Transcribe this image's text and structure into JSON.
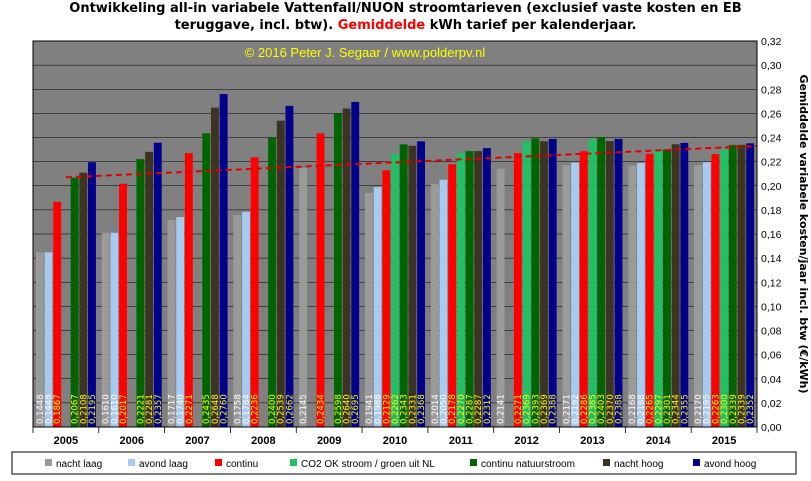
{
  "title": {
    "line1": "Ontwikkeling  all-in variabele Vattenfall/NUON stroomtarieven (exclusief vaste kosten en EB",
    "line2_pre": "teruggave, incl. btw).",
    "line2_highlight": "Gemiddelde",
    "line2_post": " kWh tarief per kalenderjaar."
  },
  "copyright": "© 2016 Peter J. Segaar / www.polderpv.nl",
  "colors": {
    "plot_bg": "#808080",
    "gridline": "#000000",
    "trend": "#e00000",
    "copyright": "#ffff00",
    "label_light": "#ffffff",
    "label_dark": "#ffff00"
  },
  "chart_data": {
    "type": "bar",
    "categories": [
      "2005",
      "2006",
      "2007",
      "2008",
      "2009",
      "2010",
      "2011",
      "2012",
      "2013",
      "2014",
      "2015"
    ],
    "ylabel": "Gemiddelde variabele kosten/jaar incl. btw (€/kWh)",
    "ylim": [
      0,
      0.32
    ],
    "yticks": [
      "0,00",
      "0,02",
      "0,04",
      "0,06",
      "0,08",
      "0,10",
      "0,12",
      "0,14",
      "0,16",
      "0,18",
      "0,20",
      "0,22",
      "0,24",
      "0,26",
      "0,28",
      "0,30",
      "0,32"
    ],
    "legend_position": "bottom",
    "grid": true,
    "trendline": {
      "from": [
        0,
        0.207
      ],
      "to": [
        10.5,
        0.233
      ],
      "style": "dashed"
    },
    "series": [
      {
        "name": "nacht laag",
        "color": "#9a9a9a",
        "labels": [
          "0,1448",
          "0,1610",
          "0,1717",
          "0,1758",
          "0,2145",
          "0,1941",
          "0,2014",
          "0,2141",
          "0,2171",
          "0,2168",
          "0,2170"
        ],
        "values": [
          0.1448,
          0.161,
          0.1717,
          0.1758,
          0.2145,
          0.1941,
          0.2014,
          0.2141,
          0.2171,
          0.2168,
          0.217
        ]
      },
      {
        "name": "avond laag",
        "color": "#a6caf0",
        "labels": [
          "0,1448",
          "0,1610",
          "0,1740",
          "0,1784",
          "",
          "0,1988",
          "0,2050",
          "",
          "0,2192",
          "0,2188",
          "0,2195"
        ],
        "values": [
          0.1448,
          0.161,
          0.174,
          0.1784,
          null,
          0.1988,
          0.205,
          null,
          0.2192,
          0.2188,
          0.2195
        ]
      },
      {
        "name": "continu",
        "color": "#ff0000",
        "labels": [
          "0,1867",
          "0,2017",
          "0,2271",
          "0,2236",
          "0,2434",
          "0,2129",
          "0,2178",
          "0,2271",
          "0,2286",
          "0,2265",
          "0,2263"
        ],
        "values": [
          0.1867,
          0.2017,
          0.2271,
          0.2236,
          0.2434,
          0.2129,
          0.2178,
          0.2271,
          0.2286,
          0.2265,
          0.2263
        ]
      },
      {
        "name": "CO2 OK stroom / groen uit NL",
        "color": "#21c064",
        "labels": [
          "",
          "",
          "",
          "",
          "",
          "0,2262",
          "0,2270",
          "0,2369",
          "0,2385",
          "0,2297",
          "0,2300"
        ],
        "values": [
          null,
          null,
          null,
          null,
          null,
          0.2262,
          0.227,
          0.2369,
          0.2385,
          0.2297,
          0.23
        ]
      },
      {
        "name": "continu natuurstroom",
        "color": "#006400",
        "labels": [
          "0,2067",
          "0,2221",
          "0,2435",
          "0,2400",
          "0,2598",
          "0,2343",
          "0,2287",
          "0,2393",
          "0,2403",
          "0,2301",
          "0,2339"
        ],
        "values": [
          0.2067,
          0.2221,
          0.2435,
          0.24,
          0.2598,
          0.2343,
          0.2287,
          0.2393,
          0.2403,
          0.2301,
          0.2339
        ]
      },
      {
        "name": "nacht hoog",
        "color": "#3d3322",
        "labels": [
          "0,2108",
          "0,2281",
          "0,2648",
          "0,2539",
          "0,2640",
          "0,2331",
          "0,2287",
          "0,2369",
          "0,2370",
          "0,2344",
          "0,2339"
        ],
        "values": [
          0.2108,
          0.2281,
          0.2648,
          0.2539,
          0.264,
          0.2331,
          0.2287,
          0.2369,
          0.237,
          0.2344,
          0.2339
        ]
      },
      {
        "name": "avond hoog",
        "color": "#00008b",
        "labels": [
          "0,2195",
          "0,2357",
          "0,2760",
          "0,2662",
          "0,2695",
          "0,2368",
          "0,2312",
          "0,2388",
          "0,2388",
          "0,2355",
          "0,2352"
        ],
        "values": [
          0.2195,
          0.2357,
          0.276,
          0.2662,
          0.2695,
          0.2368,
          0.2312,
          0.2388,
          0.2388,
          0.2355,
          0.2352
        ]
      }
    ]
  }
}
